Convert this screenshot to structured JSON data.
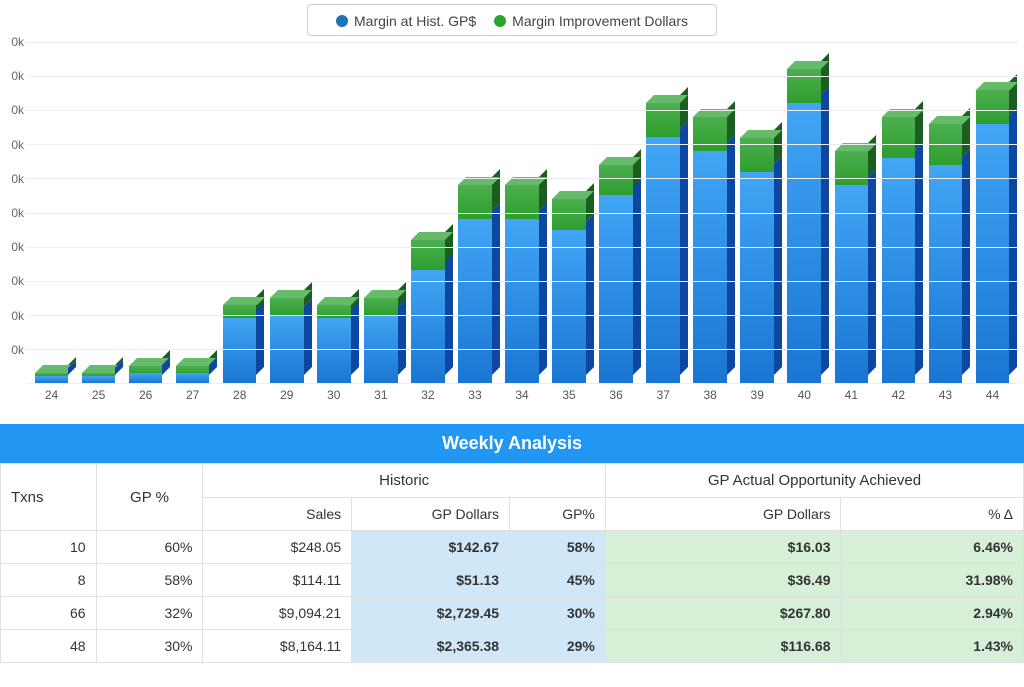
{
  "chart": {
    "type": "stacked-bar-3d",
    "legend": [
      {
        "label": "Margin at Hist. GP$",
        "color": "#1d72b8"
      },
      {
        "label": "Margin Improvement Dollars",
        "color": "#2ba52b"
      }
    ],
    "colors": {
      "blue_front": "#1976d2",
      "blue_front_light": "#42a5f5",
      "blue_side": "#0d47a1",
      "blue_top": "#64b5f6",
      "green_front": "#2e9e2e",
      "green_front_light": "#4caf50",
      "green_side": "#1b5e20",
      "green_top": "#66bb6a",
      "grid": "#eeeeee",
      "axis_text": "#666666"
    },
    "ymax": 100,
    "ytick_step": 10,
    "yticks": [
      "0k",
      "0k",
      "0k",
      "0k",
      "0k",
      "0k",
      "0k",
      "0k",
      "0k",
      "0k"
    ],
    "categories": [
      "24",
      "25",
      "26",
      "27",
      "28",
      "29",
      "30",
      "31",
      "32",
      "33",
      "34",
      "35",
      "36",
      "37",
      "38",
      "39",
      "40",
      "41",
      "42",
      "43",
      "44"
    ],
    "series_blue": [
      2,
      2,
      3,
      3,
      19,
      20,
      19,
      20,
      33,
      48,
      48,
      45,
      55,
      72,
      68,
      62,
      82,
      58,
      66,
      64,
      76
    ],
    "series_green": [
      1,
      1,
      2,
      2,
      4,
      5,
      4,
      5,
      9,
      10,
      10,
      9,
      9,
      10,
      10,
      10,
      10,
      10,
      12,
      12,
      10
    ]
  },
  "table": {
    "title": "Weekly Analysis",
    "group_headers": {
      "historic": "Historic",
      "opportunity": "GP Actual Opportunity Achieved"
    },
    "columns": {
      "txns": "Txns",
      "gp_pct": "GP %",
      "sales": "Sales",
      "gp_dollars": "GP Dollars",
      "gp_pct2": "GP%",
      "opp_gp_dollars": "GP Dollars",
      "pct_delta": "% Δ"
    },
    "highlight_colors": {
      "historic": "#cfe7f7",
      "opportunity": "#d6efd7"
    },
    "rows": [
      {
        "txns": "10",
        "gp_pct": "60%",
        "sales": "$248.05",
        "gp_dollars": "$142.67",
        "gp_pct2": "58%",
        "opp_gp": "$16.03",
        "delta": "6.46%"
      },
      {
        "txns": "8",
        "gp_pct": "58%",
        "sales": "$114.11",
        "gp_dollars": "$51.13",
        "gp_pct2": "45%",
        "opp_gp": "$36.49",
        "delta": "31.98%"
      },
      {
        "txns": "66",
        "gp_pct": "32%",
        "sales": "$9,094.21",
        "gp_dollars": "$2,729.45",
        "gp_pct2": "30%",
        "opp_gp": "$267.80",
        "delta": "2.94%"
      },
      {
        "txns": "48",
        "gp_pct": "30%",
        "sales": "$8,164.11",
        "gp_dollars": "$2,365.38",
        "gp_pct2": "29%",
        "opp_gp": "$116.68",
        "delta": "1.43%"
      }
    ]
  }
}
